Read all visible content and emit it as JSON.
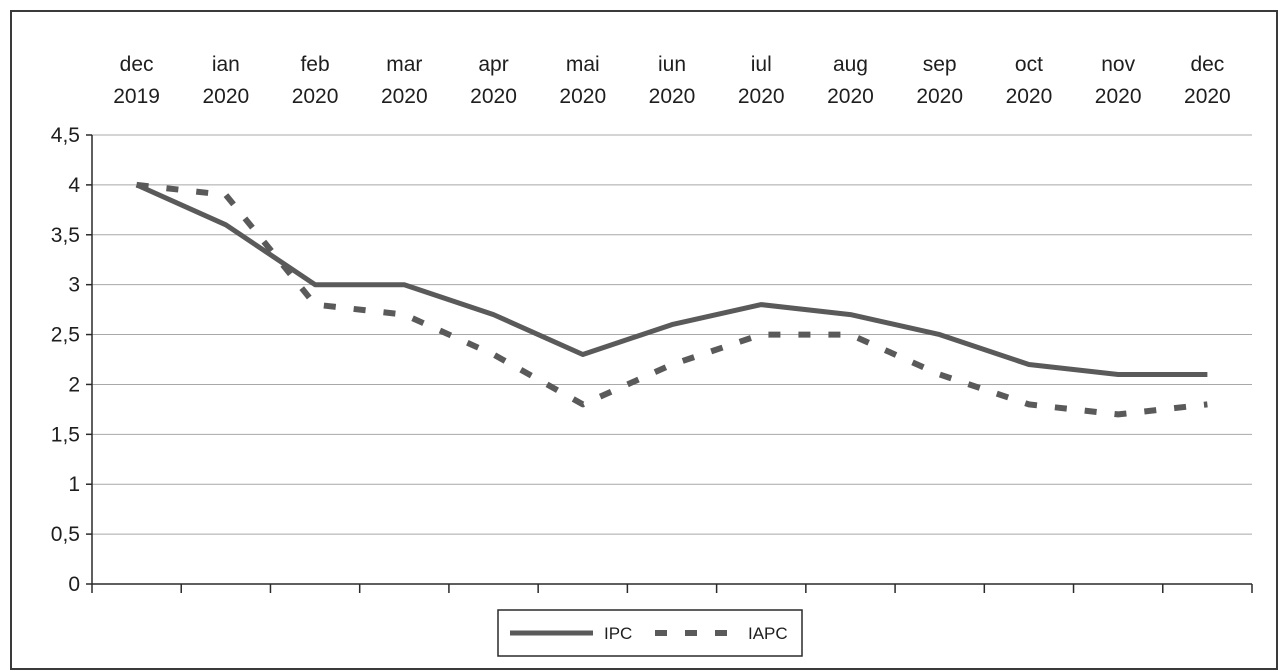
{
  "chart_data": {
    "type": "line",
    "categories": [
      [
        "dec",
        "2019"
      ],
      [
        "ian",
        "2020"
      ],
      [
        "feb",
        "2020"
      ],
      [
        "mar",
        "2020"
      ],
      [
        "apr",
        "2020"
      ],
      [
        "mai",
        "2020"
      ],
      [
        "iun",
        "2020"
      ],
      [
        "iul",
        "2020"
      ],
      [
        "aug",
        "2020"
      ],
      [
        "sep",
        "2020"
      ],
      [
        "oct",
        "2020"
      ],
      [
        "nov",
        "2020"
      ],
      [
        "dec",
        "2020"
      ]
    ],
    "series": [
      {
        "name": "IPC",
        "style": "solid",
        "color": "#5a5a5a",
        "values": [
          4.0,
          3.6,
          3.0,
          3.0,
          2.7,
          2.3,
          2.6,
          2.8,
          2.7,
          2.5,
          2.2,
          2.1,
          2.1
        ]
      },
      {
        "name": "IAPC",
        "style": "dashed",
        "color": "#5a5a5a",
        "values": [
          4.0,
          3.9,
          2.8,
          2.7,
          2.3,
          1.8,
          2.2,
          2.5,
          2.5,
          2.1,
          1.8,
          1.7,
          1.8
        ]
      }
    ],
    "y_ticks": [
      "0",
      "0,5",
      "1",
      "1,5",
      "2",
      "2,5",
      "3",
      "3,5",
      "4",
      "4,5"
    ],
    "ylim": [
      0,
      4.5
    ],
    "y_step": 0.5,
    "grid": true,
    "x_axis_labels_position": "top",
    "legend_position": "bottom-center",
    "title": "",
    "xlabel": "",
    "ylabel": ""
  }
}
